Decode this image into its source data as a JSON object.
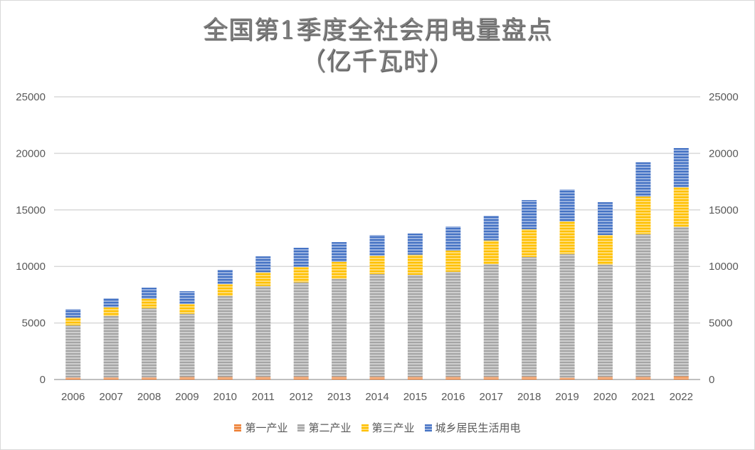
{
  "chart_data": {
    "type": "bar",
    "stacked": true,
    "title_line1": "全国第1季度全社会用电量盘点",
    "title_line2": "（亿千瓦时）",
    "categories": [
      "2006",
      "2007",
      "2008",
      "2009",
      "2010",
      "2011",
      "2012",
      "2013",
      "2014",
      "2015",
      "2016",
      "2017",
      "2018",
      "2019",
      "2020",
      "2021",
      "2022"
    ],
    "series": [
      {
        "name": "第一产业",
        "color": "#ED7D31",
        "values": [
          180,
          190,
          200,
          220,
          220,
          230,
          240,
          240,
          230,
          230,
          230,
          230,
          240,
          170,
          230,
          230,
          270
        ]
      },
      {
        "name": "第二产业",
        "color": "#A5A5A5",
        "values": [
          4610,
          5430,
          6100,
          5590,
          7170,
          8040,
          8350,
          8660,
          9090,
          9030,
          9300,
          9970,
          10590,
          10930,
          9930,
          12620,
          13230
        ]
      },
      {
        "name": "第三产业",
        "color": "#FFC000",
        "values": [
          690,
          760,
          840,
          870,
          1050,
          1200,
          1360,
          1510,
          1620,
          1780,
          1870,
          2100,
          2460,
          2880,
          2620,
          3330,
          3500
        ]
      },
      {
        "name": "城乡居民生活用电",
        "color": "#4472C4",
        "values": [
          750,
          800,
          980,
          1130,
          1260,
          1420,
          1700,
          1740,
          1840,
          1870,
          2140,
          2180,
          2580,
          2830,
          2900,
          3030,
          3470
        ]
      }
    ],
    "ylim": [
      0,
      25000
    ],
    "yticks": [
      "0",
      "5000",
      "10000",
      "15000",
      "20000",
      "25000"
    ],
    "secondary_yticks": [
      "0",
      "5000",
      "10000",
      "15000",
      "20000",
      "25000"
    ],
    "grid": true,
    "legend_position": "bottom",
    "fill_pattern": "horizontal-stripes"
  }
}
